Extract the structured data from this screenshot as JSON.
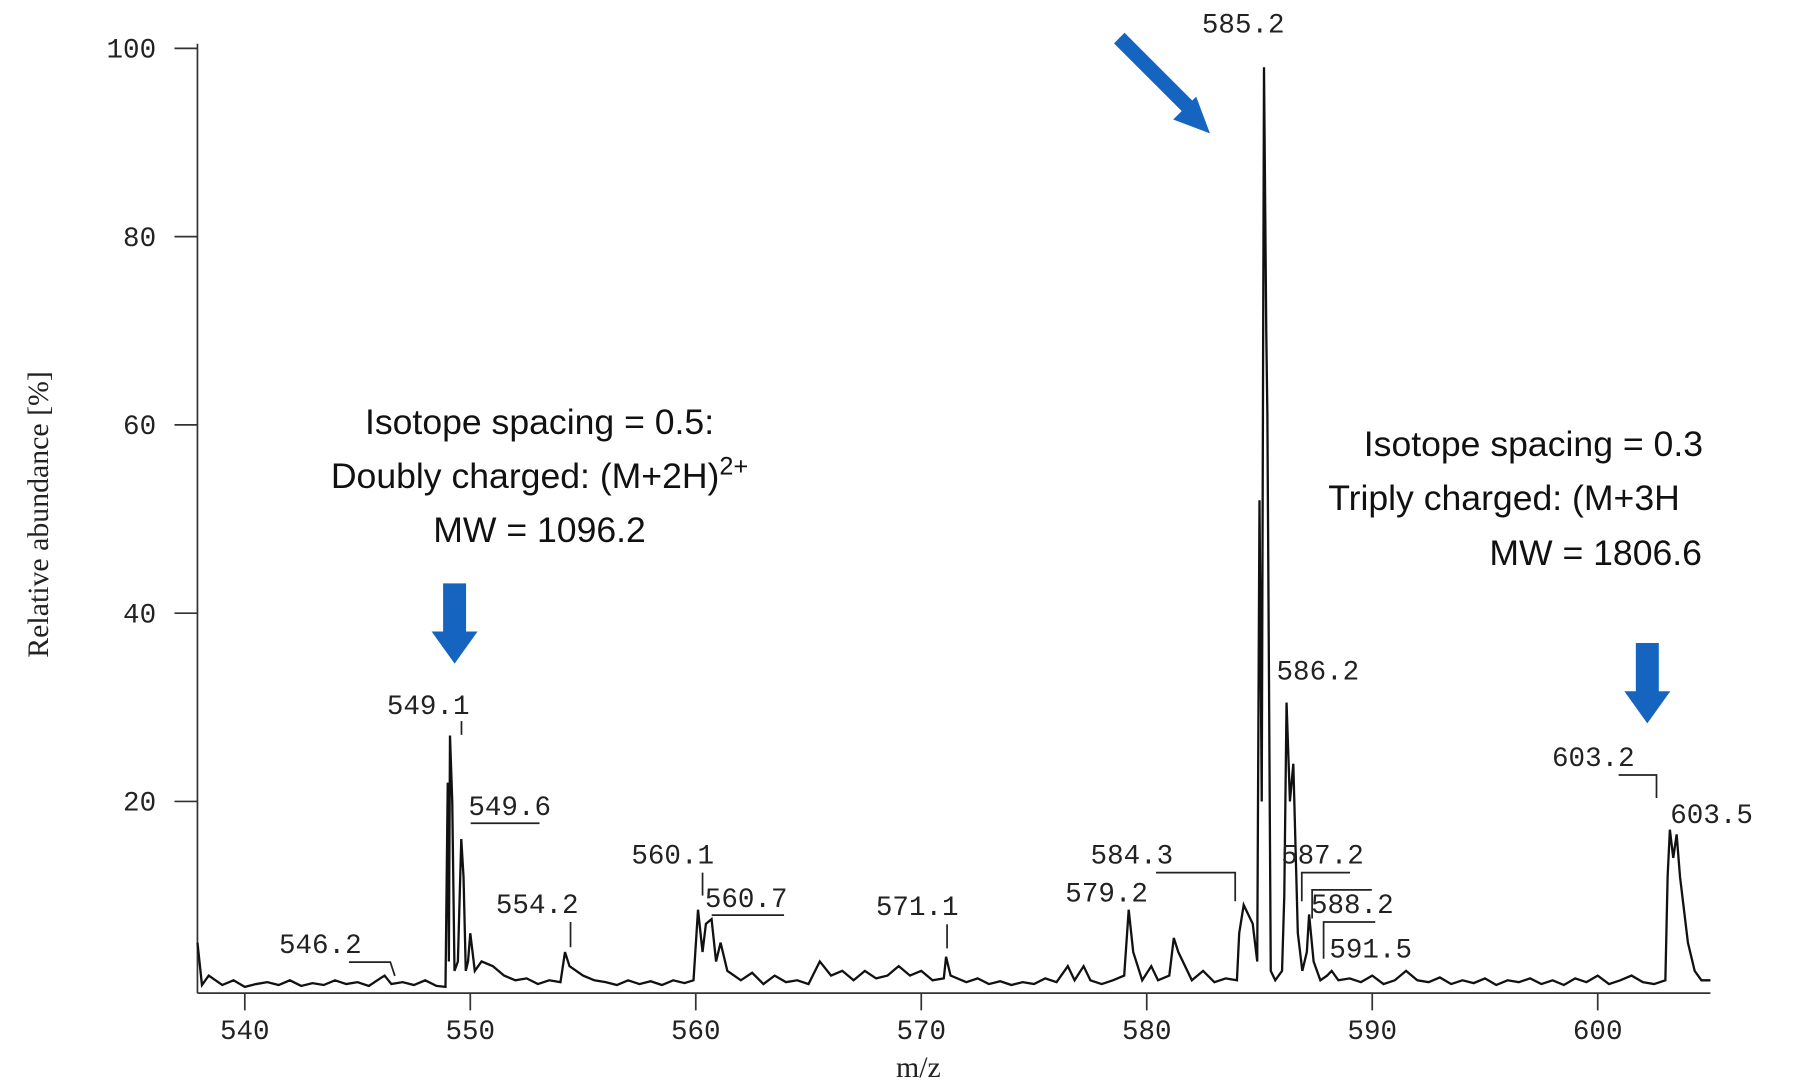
{
  "chart_data": {
    "type": "line",
    "xlabel": "m/z",
    "ylabel": "Relative abundance [%]",
    "xlim": [
      537.9,
      605
    ],
    "ylim": [
      0,
      100
    ],
    "xticks": [
      540,
      550,
      560,
      570,
      580,
      590,
      600
    ],
    "yticks": [
      20,
      40,
      60,
      80,
      100
    ],
    "color": "#111111",
    "arrow_color": "#1565c0",
    "x": [
      537.9,
      538.1,
      538.4,
      539,
      539.5,
      540,
      540.5,
      541,
      541.5,
      542,
      542.5,
      543,
      543.5,
      544,
      544.5,
      545,
      545.5,
      546,
      546.2,
      546.5,
      547,
      547.5,
      548,
      548.5,
      548.9,
      549.0,
      549.05,
      549.1,
      549.2,
      549.3,
      549.45,
      549.6,
      549.7,
      549.8,
      549.9,
      550.0,
      550.2,
      550.5,
      551,
      551.5,
      552,
      552.5,
      553,
      553.5,
      554,
      554.2,
      554.4,
      555,
      555.5,
      556,
      556.5,
      557,
      557.5,
      558,
      558.5,
      559,
      559.5,
      559.9,
      560.1,
      560.3,
      560.45,
      560.7,
      560.9,
      561.1,
      561.4,
      562,
      562.5,
      563,
      563.5,
      564,
      564.5,
      565,
      565.5,
      566,
      566.5,
      567,
      567.5,
      568,
      568.5,
      569,
      569.5,
      570,
      570.5,
      571,
      571.1,
      571.3,
      572,
      572.5,
      573,
      573.5,
      574,
      574.5,
      575,
      575.5,
      576,
      576.5,
      576.8,
      577.2,
      577.5,
      578,
      578.5,
      579,
      579.2,
      579.4,
      579.8,
      580.2,
      580.5,
      581,
      581.2,
      581.4,
      582,
      582.5,
      583,
      583.5,
      584,
      584.1,
      584.3,
      584.5,
      584.7,
      584.9,
      585.0,
      585.1,
      585.2,
      585.3,
      585.35,
      585.5,
      585.7,
      586,
      586.1,
      586.2,
      586.35,
      586.5,
      586.7,
      586.9,
      587.1,
      587.2,
      587.4,
      587.7,
      588,
      588.2,
      588.5,
      589,
      589.5,
      590,
      590.5,
      591,
      591.5,
      592,
      592.5,
      593,
      593.5,
      594,
      594.5,
      595,
      595.5,
      596,
      596.5,
      597,
      597.5,
      598,
      598.5,
      599,
      599.5,
      600,
      600.5,
      601,
      601.5,
      602,
      602.5,
      603,
      603.1,
      603.2,
      603.35,
      603.5,
      603.65,
      603.8,
      604,
      604.3,
      604.6,
      605
    ],
    "values": [
      5,
      0.5,
      1.5,
      0.5,
      1,
      0.3,
      0.6,
      0.8,
      0.5,
      1,
      0.4,
      0.7,
      0.5,
      1,
      0.6,
      0.8,
      0.4,
      1.2,
      1.5,
      0.6,
      0.8,
      0.5,
      1,
      0.4,
      0.3,
      22,
      3,
      27,
      20,
      2,
      3,
      16,
      12,
      2,
      3,
      6,
      2,
      3,
      2.5,
      1.5,
      1,
      1.2,
      0.6,
      1,
      0.8,
      4,
      2.5,
      1.5,
      1,
      0.8,
      0.5,
      1,
      0.6,
      0.9,
      0.5,
      1,
      0.7,
      1,
      8.5,
      4,
      7,
      7.5,
      3,
      5,
      2,
      1,
      1.8,
      0.6,
      1.5,
      0.8,
      1,
      0.6,
      3,
      1.5,
      2,
      1,
      2,
      1.2,
      1.5,
      2.5,
      1.5,
      2,
      1,
      1.2,
      3.5,
      1.5,
      0.8,
      1.2,
      0.6,
      0.9,
      0.5,
      0.8,
      0.6,
      1.2,
      0.8,
      2.5,
      1,
      2.5,
      1,
      0.6,
      1,
      1.5,
      8.5,
      4,
      1,
      2.5,
      1,
      1.5,
      5.5,
      4,
      1,
      2,
      0.8,
      1.2,
      1,
      6,
      9,
      8,
      7,
      3,
      52,
      20,
      98,
      70,
      61,
      2,
      1,
      2,
      10,
      30.5,
      20,
      24,
      6,
      2,
      4,
      8,
      3,
      1,
      1.5,
      2,
      1,
      1.2,
      0.8,
      1.5,
      0.6,
      1,
      2,
      1,
      0.8,
      1.3,
      0.6,
      1,
      0.7,
      1.2,
      0.5,
      1,
      0.8,
      1.2,
      0.6,
      1,
      0.5,
      1.2,
      0.8,
      1.5,
      0.6,
      1,
      1.5,
      0.8,
      0.6,
      1,
      12,
      17,
      14,
      16.5,
      12,
      9,
      5,
      2,
      1,
      1
    ],
    "peak_labels": [
      546.2,
      549.1,
      549.6,
      554.2,
      560.1,
      560.7,
      571.1,
      579.2,
      584.3,
      585.2,
      586.2,
      587.2,
      588.2,
      591.5,
      603.2,
      603.5
    ],
    "annotations": [
      {
        "lines": [
          {
            "text": "Isotope spacing = 0.5:"
          },
          {
            "text": "Doubly charged: (M+2H)",
            "sup": "2+"
          },
          {
            "text": "MW = 1096.2"
          }
        ]
      },
      {
        "lines": [
          {
            "text": "Isotope spacing = 0.3"
          },
          {
            "text": "Triply charged: (M+3H"
          },
          {
            "text": "MW = 1806.6"
          }
        ]
      }
    ]
  }
}
